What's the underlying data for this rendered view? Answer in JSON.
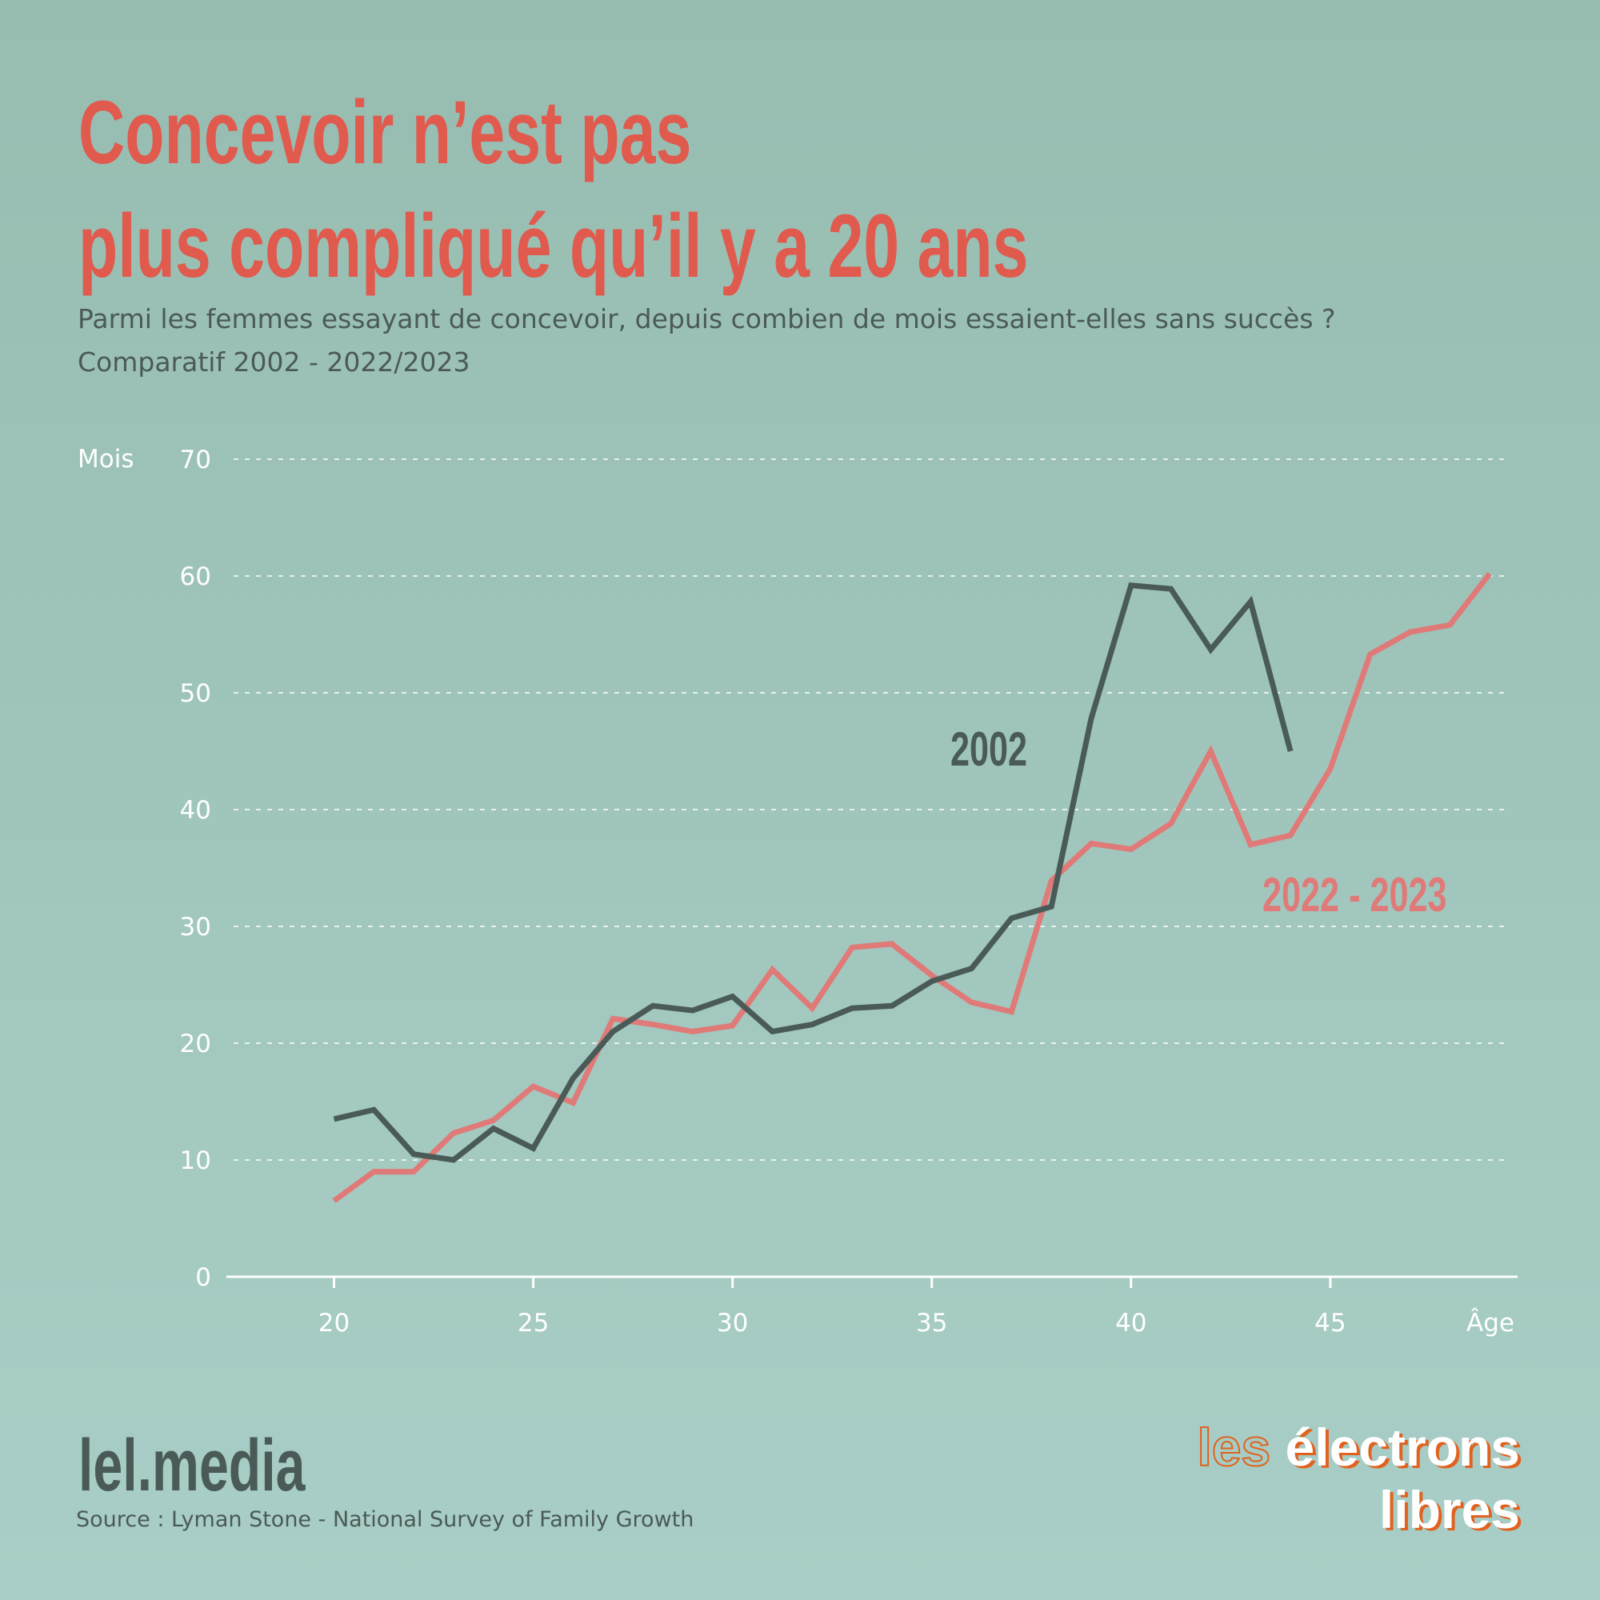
{
  "title": {
    "line1": "Concevoir n’est pas",
    "line2": "plus compliqué qu’il y a 20 ans"
  },
  "subtitle": {
    "line1": "Parmi les femmes essayant de concevoir, depuis combien de mois essaient-elles sans succès ?",
    "line2": "Comparatif 2002 - 2022/2023"
  },
  "footer": {
    "brand": "lel.media",
    "source": "Source : Lyman Stone - National Survey of Family Growth",
    "logo_line1_a": "les",
    "logo_line1_b": "électrons",
    "logo_line2": "libres"
  },
  "colors": {
    "title": "#e05a4e",
    "series_2002": "#4a5b57",
    "series_2022": "#e07a78",
    "axis": "#ffffff",
    "logo_accent": "#e0621e"
  },
  "chart_data": {
    "type": "line",
    "title": "Concevoir n’est pas plus compliqué qu’il y a 20 ans",
    "xlabel": "Âge",
    "ylabel": "Mois",
    "xlim": [
      17.3,
      49.7
    ],
    "ylim": [
      0,
      70
    ],
    "xticks": [
      20,
      25,
      30,
      35,
      40,
      45
    ],
    "yticks": [
      0,
      10,
      20,
      30,
      40,
      50,
      60,
      70
    ],
    "grid": "horizontal dashed",
    "series": [
      {
        "name": "2002",
        "x": [
          20,
          21,
          22,
          23,
          24,
          25,
          26,
          27,
          28,
          29,
          30,
          31,
          32,
          33,
          34,
          35,
          36,
          37,
          38,
          39,
          40,
          41,
          42,
          43,
          44
        ],
        "values": [
          13.5,
          14.3,
          10.5,
          10,
          12.7,
          11,
          17,
          21,
          23.2,
          22.8,
          24,
          21,
          21.6,
          23,
          23.2,
          25.3,
          26.4,
          30.7,
          31.7,
          47.8,
          59.2,
          58.9,
          53.7,
          57.8,
          45
        ]
      },
      {
        "name": "2022 - 2023",
        "x": [
          20,
          21,
          22,
          23,
          24,
          25,
          26,
          27,
          28,
          29,
          30,
          31,
          32,
          33,
          34,
          35,
          36,
          37,
          38,
          39,
          40,
          41,
          42,
          43,
          44,
          45,
          46,
          47,
          48,
          49
        ],
        "values": [
          6.5,
          9,
          9,
          12.3,
          13.4,
          16.3,
          14.9,
          22.1,
          21.6,
          21,
          21.5,
          26.3,
          23,
          28.2,
          28.5,
          25.8,
          23.5,
          22.7,
          33.9,
          37.1,
          36.6,
          38.8,
          45,
          37,
          37.8,
          43.5,
          53.3,
          55.2,
          55.8,
          60.2
        ]
      }
    ]
  }
}
